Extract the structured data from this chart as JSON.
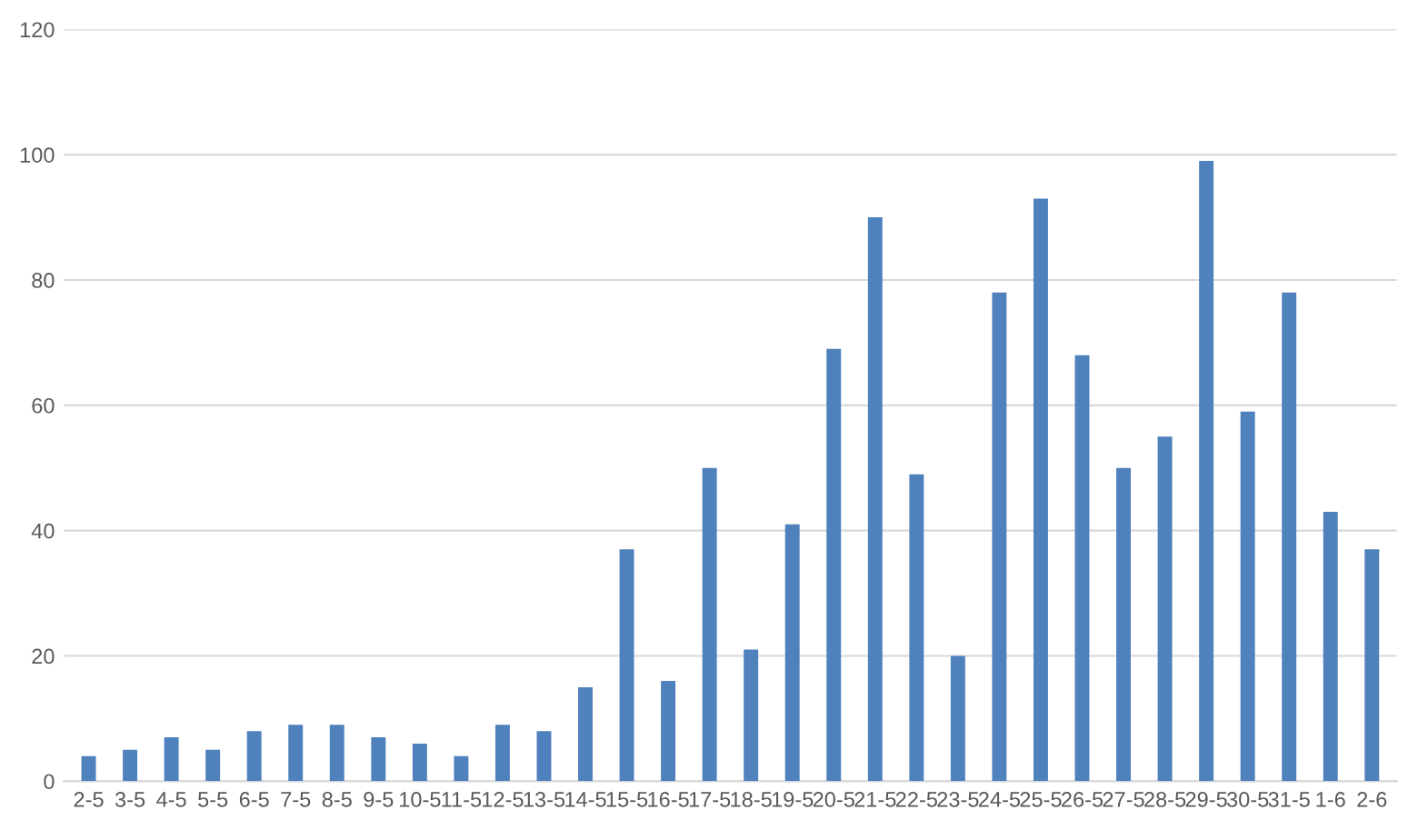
{
  "chart_data": {
    "type": "bar",
    "categories": [
      "2-5",
      "3-5",
      "4-5",
      "5-5",
      "6-5",
      "7-5",
      "8-5",
      "9-5",
      "10-5",
      "11-5",
      "12-5",
      "13-5",
      "14-5",
      "15-5",
      "16-5",
      "17-5",
      "18-5",
      "19-5",
      "20-5",
      "21-5",
      "22-5",
      "23-5",
      "24-5",
      "25-5",
      "26-5",
      "27-5",
      "28-5",
      "29-5",
      "30-5",
      "31-5",
      "1-6",
      "2-6"
    ],
    "series": [
      {
        "color": "#4f81bd",
        "values": [
          4,
          5,
          7,
          5,
          8,
          9,
          9,
          7,
          6,
          4,
          9,
          8,
          15,
          37,
          16,
          50,
          21,
          41,
          69,
          90,
          49,
          20,
          78,
          93,
          68,
          50,
          55,
          99,
          59,
          78,
          43,
          37
        ]
      }
    ],
    "ylim": [
      0,
      120
    ],
    "yticks": [
      0,
      20,
      40,
      60,
      80,
      100,
      120
    ],
    "grid": "y",
    "legend": false
  }
}
